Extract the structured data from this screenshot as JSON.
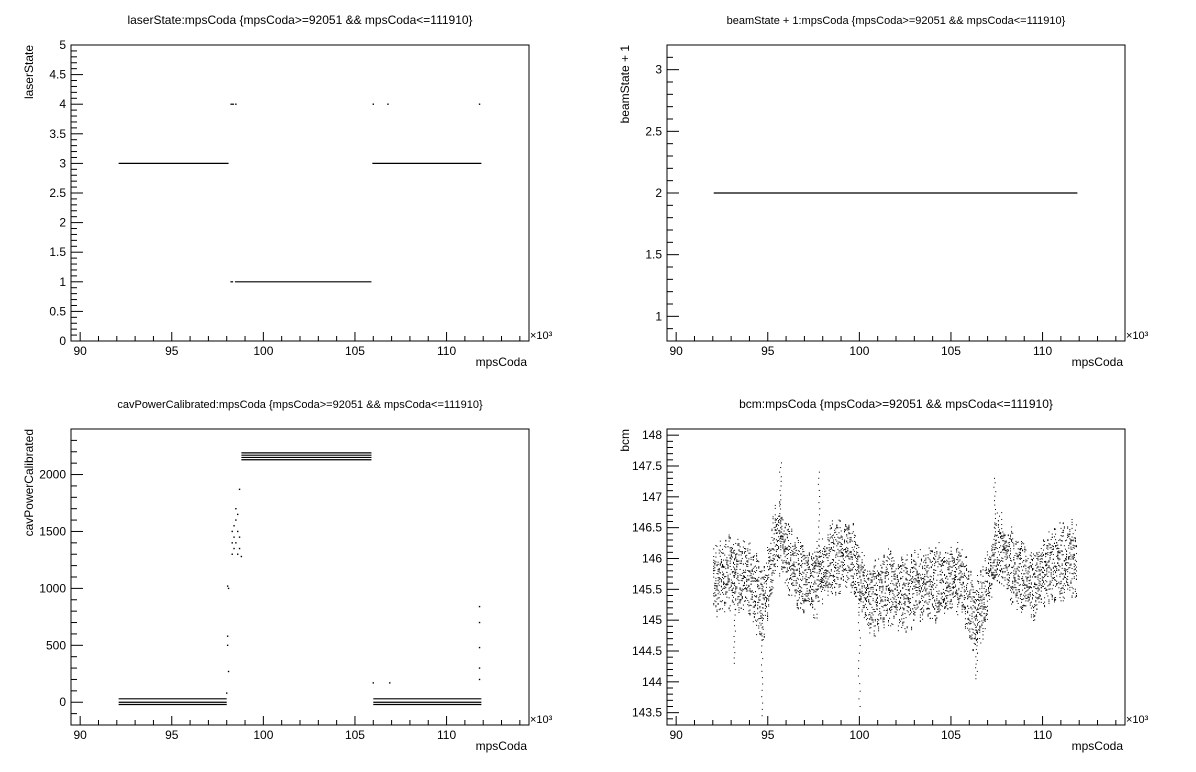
{
  "chart_data": [
    {
      "type": "scatter",
      "title": "laserState:mpsCoda {mpsCoda>=92051 && mpsCoda<=111910}",
      "xlabel": "mpsCoda",
      "ylabel": "laserState",
      "x_multiplier": "×10³",
      "xlim": [
        89.5,
        114.5
      ],
      "ylim": [
        0,
        5
      ],
      "x_ticks": [
        90,
        95,
        100,
        105,
        110
      ],
      "y_ticks": [
        0,
        0.5,
        1,
        1.5,
        2,
        2.5,
        3,
        3.5,
        4,
        4.5,
        5
      ],
      "grid": false,
      "segments": [
        {
          "x": [
            92.1,
            98.1
          ],
          "y": 3
        },
        {
          "x": [
            98.2,
            98.4
          ],
          "y": 4
        },
        {
          "x": [
            98.2,
            98.35
          ],
          "y": 1
        },
        {
          "x": [
            98.45,
            105.9
          ],
          "y": 1
        },
        {
          "x": [
            105.95,
            111.9
          ],
          "y": 3
        }
      ],
      "points": [
        {
          "x": 98.5,
          "y": 4
        },
        {
          "x": 106.0,
          "y": 4
        },
        {
          "x": 106.8,
          "y": 4
        },
        {
          "x": 111.8,
          "y": 4
        }
      ]
    },
    {
      "type": "scatter",
      "title": "beamState + 1:mpsCoda {mpsCoda>=92051 && mpsCoda<=111910}",
      "xlabel": "mpsCoda",
      "ylabel": "beamState + 1",
      "x_multiplier": "×10³",
      "xlim": [
        89.5,
        114.5
      ],
      "ylim": [
        0.8,
        3.2
      ],
      "x_ticks": [
        90,
        95,
        100,
        105,
        110
      ],
      "y_ticks": [
        1,
        1.5,
        2,
        2.5,
        3
      ],
      "grid": false,
      "segments": [
        {
          "x": [
            92.05,
            111.9
          ],
          "y": 2
        }
      ],
      "points": []
    },
    {
      "type": "scatter",
      "title": "cavPowerCalibrated:mpsCoda {mpsCoda>=92051 && mpsCoda<=111910}",
      "xlabel": "mpsCoda",
      "ylabel": "cavPowerCalibrated",
      "x_multiplier": "×10³",
      "xlim": [
        89.5,
        114.5
      ],
      "ylim": [
        -200,
        2400
      ],
      "x_ticks": [
        90,
        95,
        100,
        105,
        110
      ],
      "y_ticks": [
        0,
        500,
        1000,
        1500,
        2000
      ],
      "grid": false,
      "segments": [
        {
          "x": [
            92.1,
            98.0
          ],
          "y": 30
        },
        {
          "x": [
            92.1,
            98.0
          ],
          "y": 0
        },
        {
          "x": [
            92.1,
            98.0
          ],
          "y": -20
        },
        {
          "x": [
            98.8,
            105.9
          ],
          "y": 2190
        },
        {
          "x": [
            98.8,
            105.9
          ],
          "y": 2170
        },
        {
          "x": [
            98.8,
            105.9
          ],
          "y": 2150
        },
        {
          "x": [
            98.8,
            105.9
          ],
          "y": 2130
        },
        {
          "x": [
            106.0,
            111.9
          ],
          "y": 30
        },
        {
          "x": [
            106.0,
            111.9
          ],
          "y": 0
        },
        {
          "x": [
            106.0,
            111.9
          ],
          "y": -20
        }
      ],
      "points": [
        {
          "x": 98.05,
          "y": 1020
        },
        {
          "x": 98.05,
          "y": 580
        },
        {
          "x": 98.05,
          "y": 500
        },
        {
          "x": 98.1,
          "y": 270
        },
        {
          "x": 98.0,
          "y": 80
        },
        {
          "x": 98.1,
          "y": 1000
        },
        {
          "x": 98.3,
          "y": 1300
        },
        {
          "x": 98.3,
          "y": 1400
        },
        {
          "x": 98.3,
          "y": 1500
        },
        {
          "x": 98.4,
          "y": 1350
        },
        {
          "x": 98.4,
          "y": 1450
        },
        {
          "x": 98.4,
          "y": 1550
        },
        {
          "x": 98.5,
          "y": 1400
        },
        {
          "x": 98.5,
          "y": 1600
        },
        {
          "x": 98.5,
          "y": 1700
        },
        {
          "x": 98.6,
          "y": 1300
        },
        {
          "x": 98.6,
          "y": 1500
        },
        {
          "x": 98.6,
          "y": 1650
        },
        {
          "x": 98.7,
          "y": 1350
        },
        {
          "x": 98.7,
          "y": 1450
        },
        {
          "x": 98.7,
          "y": 1870
        },
        {
          "x": 98.8,
          "y": 1280
        },
        {
          "x": 106.0,
          "y": 170
        },
        {
          "x": 106.9,
          "y": 170
        },
        {
          "x": 111.8,
          "y": 840
        },
        {
          "x": 111.8,
          "y": 700
        },
        {
          "x": 111.8,
          "y": 480
        },
        {
          "x": 111.8,
          "y": 300
        },
        {
          "x": 111.8,
          "y": 200
        }
      ]
    },
    {
      "type": "scatter",
      "title": "bcm:mpsCoda {mpsCoda>=92051 && mpsCoda<=111910}",
      "xlabel": "mpsCoda",
      "ylabel": "bcm",
      "x_multiplier": "×10³",
      "xlim": [
        89.5,
        114.5
      ],
      "ylim": [
        143.3,
        148.1
      ],
      "x_ticks": [
        90,
        95,
        100,
        105,
        110
      ],
      "y_ticks": [
        143.5,
        144,
        144.5,
        145,
        145.5,
        146,
        146.5,
        147,
        147.5,
        148
      ],
      "grid": false,
      "x_range": [
        92.05,
        111.9
      ],
      "band_center": [
        [
          92.0,
          145.6
        ],
        [
          93.0,
          145.8
        ],
        [
          94.0,
          145.7
        ],
        [
          94.7,
          145.2
        ],
        [
          95.5,
          146.4
        ],
        [
          96.5,
          145.8
        ],
        [
          97.5,
          145.6
        ],
        [
          98.5,
          146.0
        ],
        [
          99.5,
          146.1
        ],
        [
          100.5,
          145.3
        ],
        [
          101.5,
          145.5
        ],
        [
          102.5,
          145.4
        ],
        [
          103.5,
          145.6
        ],
        [
          104.5,
          145.6
        ],
        [
          105.5,
          145.7
        ],
        [
          106.3,
          145.0
        ],
        [
          106.8,
          145.3
        ],
        [
          107.5,
          146.2
        ],
        [
          108.5,
          145.8
        ],
        [
          109.5,
          145.6
        ],
        [
          110.5,
          145.9
        ],
        [
          111.9,
          146.0
        ]
      ],
      "band_halfwidth": 0.45,
      "extremes": [
        {
          "x": 94.7,
          "y": 143.45
        },
        {
          "x": 95.7,
          "y": 147.55
        },
        {
          "x": 97.8,
          "y": 147.4
        },
        {
          "x": 100.0,
          "y": 143.6
        },
        {
          "x": 106.4,
          "y": 144.05
        },
        {
          "x": 107.4,
          "y": 147.3
        },
        {
          "x": 93.2,
          "y": 144.3
        }
      ]
    }
  ]
}
